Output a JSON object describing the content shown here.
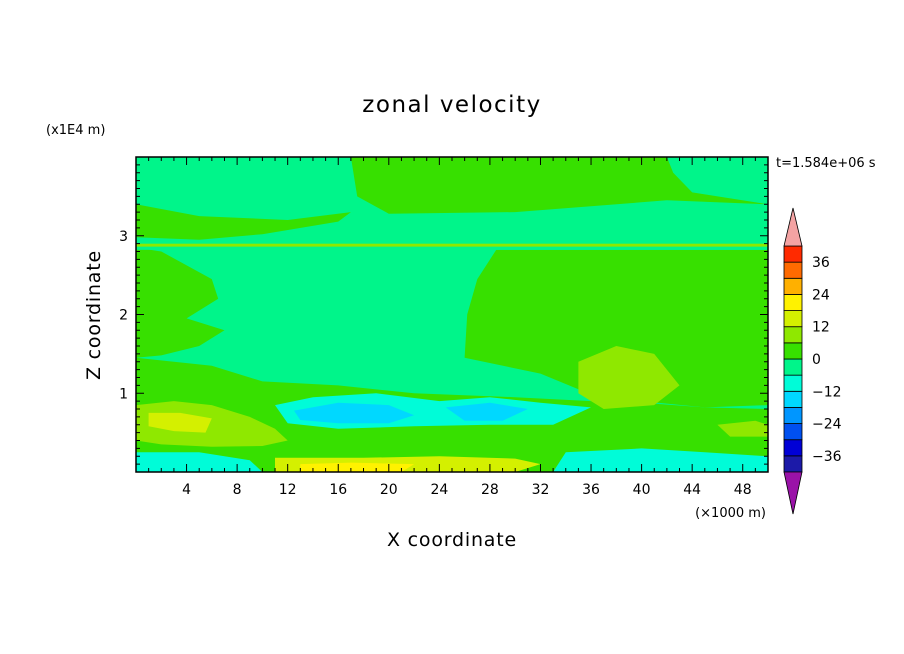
{
  "chart_data": {
    "type": "heatmap",
    "title": "zonal velocity",
    "time_label": "t=1.584e+06 s",
    "xlabel": "X coordinate",
    "ylabel": "Z coordinate",
    "x_unit": "(×1000 m)",
    "y_unit": "(x1E4 m)",
    "xlim": [
      0,
      50
    ],
    "ylim": [
      0,
      4
    ],
    "x_ticks": [
      4,
      8,
      12,
      16,
      20,
      24,
      28,
      32,
      36,
      40,
      44,
      48
    ],
    "x_tick_labels": [
      "4",
      "8",
      "12",
      "16",
      "20",
      "24",
      "28",
      "32",
      "36",
      "40",
      "44",
      "48"
    ],
    "y_ticks": [
      1,
      2,
      3
    ],
    "y_tick_labels": [
      "1",
      "2",
      "3"
    ],
    "colorbar": {
      "levels": [
        -42,
        -36,
        -30,
        -24,
        -18,
        -12,
        -6,
        0,
        6,
        12,
        18,
        24,
        30,
        36,
        42
      ],
      "colors": [
        "#4b0f8f",
        "#1c1aa8",
        "#0000d6",
        "#0050f0",
        "#0096ff",
        "#00d8ff",
        "#00fcd8",
        "#00f58a",
        "#37e000",
        "#8fe800",
        "#d4f000",
        "#fff200",
        "#ffb000",
        "#ff6a00",
        "#ff2a00",
        "#e00000"
      ],
      "under_color": "#9a12a8",
      "over_color": "#f4a3a3",
      "tick_values": [
        36,
        24,
        12,
        0,
        -12,
        -24,
        -36
      ],
      "tick_labels": [
        "36",
        "24",
        "12",
        "0",
        "−12",
        "−24",
        "−36"
      ]
    },
    "field_regions": [
      {
        "name": "upper-right-band",
        "value": 3,
        "points": [
          [
            17,
            4
          ],
          [
            50,
            4
          ],
          [
            50,
            3.4
          ],
          [
            42,
            3.45
          ],
          [
            30,
            3.3
          ],
          [
            20,
            3.28
          ],
          [
            17.5,
            3.5
          ]
        ]
      },
      {
        "name": "upper-right-calm",
        "value": -3,
        "points": [
          [
            42,
            4
          ],
          [
            50,
            4
          ],
          [
            50,
            3.4
          ],
          [
            44,
            3.55
          ],
          [
            42.5,
            3.8
          ]
        ]
      },
      {
        "name": "upper-left-band",
        "value": 3,
        "points": [
          [
            0,
            3.4
          ],
          [
            5,
            3.25
          ],
          [
            12,
            3.2
          ],
          [
            17,
            3.3
          ],
          [
            16,
            3.18
          ],
          [
            10,
            3.02
          ],
          [
            5,
            2.95
          ],
          [
            0,
            2.98
          ]
        ]
      },
      {
        "name": "mid-right-block",
        "value": 3,
        "points": [
          [
            28.5,
            2.82
          ],
          [
            50,
            2.82
          ],
          [
            50,
            0.85
          ],
          [
            45,
            0.82
          ],
          [
            40,
            0.9
          ],
          [
            35,
            1.05
          ],
          [
            32,
            1.25
          ],
          [
            26,
            1.45
          ],
          [
            26.2,
            2
          ],
          [
            27,
            2.45
          ]
        ]
      },
      {
        "name": "left-lobe",
        "value": 3,
        "points": [
          [
            0,
            2.85
          ],
          [
            2,
            2.8
          ],
          [
            6,
            2.45
          ],
          [
            6.5,
            2.2
          ],
          [
            4,
            1.95
          ],
          [
            7,
            1.8
          ],
          [
            5,
            1.6
          ],
          [
            2,
            1.48
          ],
          [
            0,
            1.45
          ]
        ]
      },
      {
        "name": "mid-left-band",
        "value": 3,
        "points": [
          [
            0,
            1.45
          ],
          [
            6,
            1.35
          ],
          [
            10,
            1.15
          ],
          [
            16,
            1.1
          ],
          [
            22,
            1.0
          ],
          [
            30,
            0.95
          ],
          [
            36,
            0.9
          ],
          [
            40,
            0.88
          ],
          [
            45,
            0.82
          ],
          [
            50,
            0.8
          ],
          [
            50,
            0.0
          ],
          [
            0,
            0.0
          ]
        ]
      },
      {
        "name": "mid-right-lobe",
        "value": 9,
        "points": [
          [
            35,
            1.4
          ],
          [
            38,
            1.6
          ],
          [
            41,
            1.5
          ],
          [
            43,
            1.1
          ],
          [
            41,
            0.85
          ],
          [
            37,
            0.8
          ],
          [
            35,
            1.0
          ]
        ]
      },
      {
        "name": "mid-left-jet",
        "value": -9,
        "points": [
          [
            11,
            0.85
          ],
          [
            14,
            0.95
          ],
          [
            19,
            1.0
          ],
          [
            24,
            0.9
          ],
          [
            28,
            0.95
          ],
          [
            32,
            0.88
          ],
          [
            36,
            0.82
          ],
          [
            33,
            0.6
          ],
          [
            28,
            0.6
          ],
          [
            22,
            0.58
          ],
          [
            16,
            0.55
          ],
          [
            12,
            0.62
          ]
        ]
      },
      {
        "name": "lower-cyan-core",
        "value": -15,
        "points": [
          [
            12.5,
            0.78
          ],
          [
            16,
            0.88
          ],
          [
            20,
            0.85
          ],
          [
            22,
            0.72
          ],
          [
            20,
            0.62
          ],
          [
            16,
            0.62
          ],
          [
            13,
            0.66
          ]
        ]
      },
      {
        "name": "lower-cyan-core-2",
        "value": -15,
        "points": [
          [
            24.5,
            0.82
          ],
          [
            28,
            0.88
          ],
          [
            31,
            0.8
          ],
          [
            29,
            0.65
          ],
          [
            26,
            0.65
          ]
        ]
      },
      {
        "name": "lower-left-pos",
        "value": 9,
        "points": [
          [
            0,
            0.85
          ],
          [
            3,
            0.9
          ],
          [
            6,
            0.85
          ],
          [
            9,
            0.7
          ],
          [
            11,
            0.55
          ],
          [
            12,
            0.4
          ],
          [
            10,
            0.33
          ],
          [
            6,
            0.32
          ],
          [
            2,
            0.35
          ],
          [
            0,
            0.4
          ]
        ]
      },
      {
        "name": "lower-left-strong",
        "value": 15,
        "points": [
          [
            1,
            0.75
          ],
          [
            3.5,
            0.75
          ],
          [
            6,
            0.68
          ],
          [
            5.5,
            0.5
          ],
          [
            3,
            0.52
          ],
          [
            1,
            0.58
          ]
        ]
      },
      {
        "name": "lower-right-pos",
        "value": 9,
        "points": [
          [
            46,
            0.6
          ],
          [
            49,
            0.65
          ],
          [
            50,
            0.6
          ],
          [
            50,
            0.45
          ],
          [
            47,
            0.45
          ]
        ]
      },
      {
        "name": "bottom-warm-strip",
        "value": 15,
        "points": [
          [
            11,
            0.18
          ],
          [
            18,
            0.18
          ],
          [
            24,
            0.2
          ],
          [
            30,
            0.17
          ],
          [
            32,
            0.1
          ],
          [
            30,
            0
          ],
          [
            11,
            0
          ]
        ]
      },
      {
        "name": "bottom-warm-strip-core",
        "value": 21,
        "points": [
          [
            13,
            0.1
          ],
          [
            17,
            0.12
          ],
          [
            22,
            0.1
          ],
          [
            21,
            0
          ],
          [
            13,
            0
          ]
        ]
      },
      {
        "name": "bottom-cyan-left",
        "value": -9,
        "points": [
          [
            0,
            0.25
          ],
          [
            5,
            0.25
          ],
          [
            9,
            0.15
          ],
          [
            10,
            0
          ],
          [
            0,
            0
          ]
        ]
      },
      {
        "name": "bottom-cyan-right",
        "value": -9,
        "points": [
          [
            34,
            0.25
          ],
          [
            40,
            0.3
          ],
          [
            45,
            0.25
          ],
          [
            50,
            0.2
          ],
          [
            50,
            0
          ],
          [
            33,
            0
          ]
        ]
      }
    ],
    "jet_streaks": [
      {
        "name": "upper-thin-streak-1",
        "value": 9,
        "y": 2.88
      },
      {
        "name": "upper-thin-streak-2",
        "value": -3,
        "y": 2.84
      }
    ]
  }
}
